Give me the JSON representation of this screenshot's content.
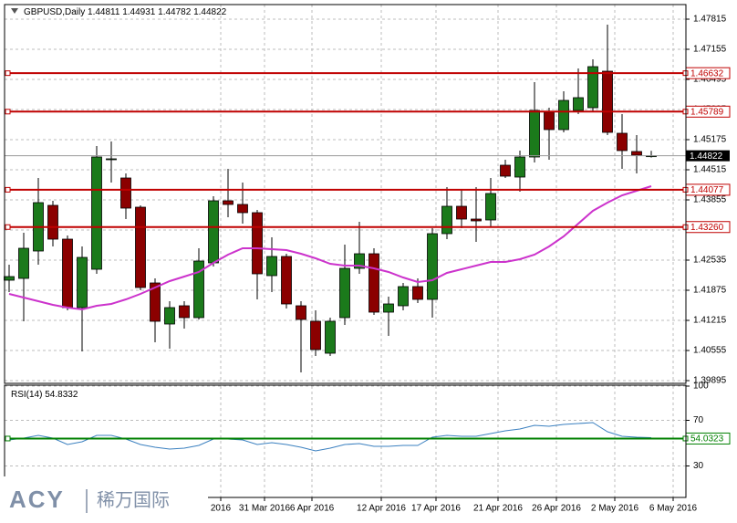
{
  "chart_data": [
    {
      "type": "candlestick",
      "title": "GBPUSD,Daily",
      "open": [
        1.42095,
        1.42135,
        1.42735,
        1.43735,
        1.42995,
        1.41495,
        1.42335,
        1.44735,
        1.44335,
        1.43695,
        1.42035,
        1.41135,
        1.41535,
        1.41275,
        1.42475,
        1.43835,
        1.43755,
        1.43575,
        1.42195,
        1.42615,
        1.41535,
        1.41195,
        1.40495,
        1.41275,
        1.42355,
        1.42675,
        1.41395,
        1.41535,
        1.41955,
        1.41675,
        1.43115,
        1.43715,
        1.43435,
        1.43415,
        1.44615,
        1.44355,
        1.44795,
        1.45775,
        1.45395,
        1.45815,
        1.45875,
        1.46675,
        1.45315,
        1.44915,
        1.44811
      ],
      "high": [
        1.42435,
        1.43135,
        1.44335,
        1.43835,
        1.43075,
        1.42835,
        1.45035,
        1.45135,
        1.44435,
        1.43735,
        1.42135,
        1.41635,
        1.41635,
        1.42795,
        1.43935,
        1.44535,
        1.44235,
        1.43635,
        1.43035,
        1.42675,
        1.41635,
        1.41435,
        1.41275,
        1.42875,
        1.43375,
        1.42795,
        1.41735,
        1.42035,
        1.42135,
        1.43235,
        1.44135,
        1.44075,
        1.44135,
        1.44335,
        1.44735,
        1.44935,
        1.46435,
        1.45875,
        1.46235,
        1.46735,
        1.46935,
        1.47695,
        1.45735,
        1.45275,
        1.44931
      ],
      "low": [
        1.41835,
        1.41195,
        1.42435,
        1.42835,
        1.41435,
        1.40535,
        1.42235,
        1.44235,
        1.43435,
        1.41875,
        1.40735,
        1.40595,
        1.41035,
        1.41235,
        1.42395,
        1.43475,
        1.43335,
        1.41675,
        1.41835,
        1.41475,
        1.40075,
        1.40435,
        1.40435,
        1.41115,
        1.42235,
        1.41335,
        1.40875,
        1.41435,
        1.41595,
        1.41275,
        1.42995,
        1.43235,
        1.42935,
        1.43275,
        1.44335,
        1.44035,
        1.44675,
        1.44735,
        1.45335,
        1.45735,
        1.45795,
        1.45275,
        1.44535,
        1.44435,
        1.44782
      ],
      "close": [
        1.42175,
        1.42795,
        1.43795,
        1.42995,
        1.41495,
        1.42595,
        1.44795,
        1.44755,
        1.43675,
        1.41935,
        1.41195,
        1.41495,
        1.41275,
        1.42515,
        1.43835,
        1.43755,
        1.43575,
        1.42235,
        1.42615,
        1.41575,
        1.41235,
        1.40575,
        1.41195,
        1.42355,
        1.42675,
        1.41395,
        1.41575,
        1.41955,
        1.41675,
        1.43115,
        1.43715,
        1.43435,
        1.43395,
        1.43995,
        1.44375,
        1.44795,
        1.45815,
        1.45395,
        1.46035,
        1.46095,
        1.46775,
        1.45335,
        1.44935,
        1.44835,
        1.44822
      ],
      "up_color": "#1b7a1b",
      "down_color": "#8b0000",
      "series": [
        {
          "color": "#cc33cc",
          "values": [
            1.41795,
            1.41715,
            1.41635,
            1.41555,
            1.41495,
            1.41455,
            1.41535,
            1.41575,
            1.41675,
            1.41795,
            1.41935,
            1.42075,
            1.42175,
            1.42275,
            1.42475,
            1.42655,
            1.42795,
            1.42795,
            1.42775,
            1.42755,
            1.42675,
            1.42575,
            1.42455,
            1.42415,
            1.42415,
            1.42355,
            1.42275,
            1.42155,
            1.42055,
            1.42095,
            1.42255,
            1.42335,
            1.42415,
            1.42495,
            1.42495,
            1.42555,
            1.42655,
            1.42835,
            1.43055,
            1.43335,
            1.43615,
            1.43795,
            1.43955,
            1.44055,
            1.44155
          ]
        }
      ],
      "levels": [
        {
          "value": 1.46632,
          "color": "#c00000"
        },
        {
          "value": 1.45789,
          "color": "#c00000"
        },
        {
          "value": 1.44077,
          "color": "#c00000"
        },
        {
          "value": 1.4326,
          "label": "1.43260",
          "color": "#c00000"
        }
      ],
      "ylim": [
        1.39835,
        1.48135
      ],
      "yticks": [
        1.47815,
        1.47155,
        1.46495,
        1.45835,
        1.45175,
        1.44515,
        1.43855,
        1.43195,
        1.42535,
        1.41875,
        1.41215,
        1.40555,
        1.39895
      ],
      "xlim": [
        -0.3125,
        46.375
      ],
      "xticks": [
        {
          "value": 14.5,
          "label": "2016"
        },
        {
          "value": 17.5,
          "label": "31 Mar 2016"
        },
        {
          "value": 20.75,
          "label": "6 Apr 2016"
        },
        {
          "value": 25.5,
          "label": "12 Apr 2016"
        },
        {
          "value": 29.25,
          "label": "17 Apr 2016"
        },
        {
          "value": 33.5,
          "label": "21 Apr 2016"
        },
        {
          "value": 37.5,
          "label": "26 Apr 2016"
        },
        {
          "value": 41.5,
          "label": "2 May 2016"
        },
        {
          "value": 45.5,
          "label": "6 May 2016"
        }
      ],
      "grid": true
    },
    {
      "type": "line",
      "title": "RSI(14)",
      "color": "#3b80c0",
      "values": [
        52.8,
        54.4,
        56.8,
        54.4,
        48.8,
        51.2,
        56.8,
        56.8,
        53.6,
        48.8,
        46.4,
        44.8,
        45.6,
        48,
        53.6,
        53.6,
        52.8,
        48.8,
        50.4,
        48.8,
        46.4,
        43.2,
        45.6,
        48.8,
        49.6,
        47.2,
        47.2,
        48,
        48,
        55.2,
        56.8,
        56,
        56,
        58.4,
        60.8,
        62.4,
        65.6,
        64.8,
        66.4,
        67.2,
        68,
        60,
        56,
        55.2,
        54.8332
      ],
      "levels": [
        {
          "value": 54.0323,
          "color": "#008000"
        }
      ],
      "ylim": [
        0,
        100
      ],
      "yticks": [
        30,
        70,
        100
      ],
      "grid": true
    }
  ],
  "watermark": {
    "brand": "ACY",
    "name": "稀万国际"
  }
}
